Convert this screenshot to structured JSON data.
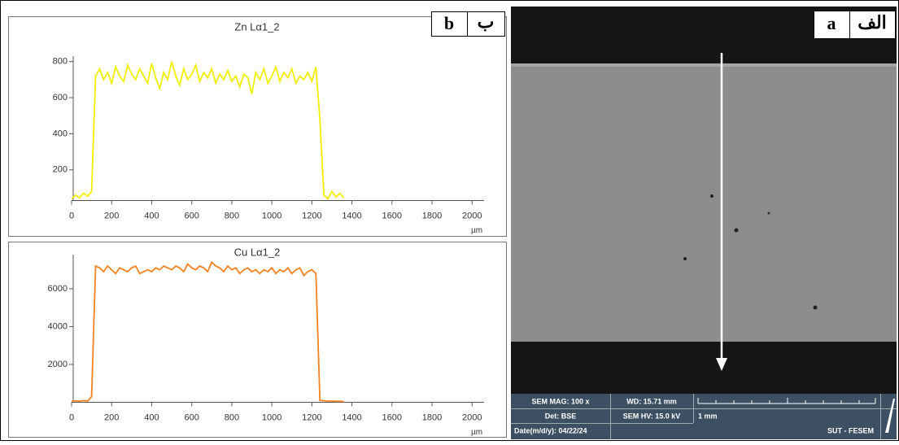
{
  "panel_labels": {
    "b_latin": "b",
    "b_persian": "ب",
    "a_latin": "a",
    "a_persian": "الف"
  },
  "chart_data": [
    {
      "type": "line",
      "title": "Zn Lα1_2",
      "x_unit": "µm",
      "x": [
        0,
        20,
        40,
        60,
        80,
        100,
        120,
        140,
        160,
        180,
        200,
        220,
        240,
        260,
        280,
        300,
        320,
        340,
        360,
        380,
        400,
        420,
        440,
        460,
        480,
        500,
        520,
        540,
        560,
        580,
        600,
        620,
        640,
        660,
        680,
        700,
        720,
        740,
        760,
        780,
        800,
        820,
        840,
        860,
        880,
        900,
        920,
        940,
        960,
        980,
        1000,
        1020,
        1040,
        1060,
        1080,
        1100,
        1120,
        1140,
        1160,
        1180,
        1200,
        1220,
        1240,
        1260,
        1280,
        1300,
        1320,
        1340,
        1360
      ],
      "series": [
        {
          "name": "Zn Lα1_2",
          "color": "#f2ee00",
          "values": [
            40,
            60,
            45,
            70,
            55,
            80,
            720,
            760,
            700,
            740,
            680,
            770,
            720,
            690,
            780,
            730,
            700,
            760,
            720,
            680,
            790,
            710,
            650,
            740,
            700,
            800,
            720,
            670,
            760,
            700,
            730,
            780,
            690,
            740,
            710,
            760,
            680,
            730,
            700,
            750,
            690,
            720,
            660,
            730,
            710,
            620,
            740,
            700,
            760,
            680,
            720,
            770,
            690,
            740,
            710,
            760,
            680,
            720,
            700,
            740,
            690,
            770,
            480,
            60,
            40,
            80,
            50,
            70,
            45
          ]
        }
      ],
      "xlim": [
        0,
        2060
      ],
      "xticks": [
        0,
        200,
        400,
        600,
        800,
        1000,
        1200,
        1400,
        1600,
        1800,
        2000
      ],
      "ylim": [
        30,
        830
      ],
      "yticks": [
        200,
        400,
        600,
        800
      ]
    },
    {
      "type": "line",
      "title": "Cu Lα1_2",
      "x_unit": "µm",
      "x": [
        0,
        20,
        40,
        60,
        80,
        100,
        120,
        140,
        160,
        180,
        200,
        220,
        240,
        260,
        280,
        300,
        320,
        340,
        360,
        380,
        400,
        420,
        440,
        460,
        480,
        500,
        520,
        540,
        560,
        580,
        600,
        620,
        640,
        660,
        680,
        700,
        720,
        740,
        760,
        780,
        800,
        820,
        840,
        860,
        880,
        900,
        920,
        940,
        960,
        980,
        1000,
        1020,
        1040,
        1060,
        1080,
        1100,
        1120,
        1140,
        1160,
        1180,
        1200,
        1220,
        1240,
        1260,
        1280,
        1300,
        1320,
        1340,
        1360
      ],
      "series": [
        {
          "name": "Cu Lα1_2",
          "color": "#f5821f",
          "values": [
            50,
            80,
            60,
            90,
            70,
            300,
            7200,
            7100,
            6900,
            7200,
            7000,
            6800,
            7100,
            7000,
            6900,
            7100,
            7200,
            6800,
            6900,
            7000,
            6900,
            7100,
            7000,
            7200,
            7100,
            7000,
            7200,
            7100,
            6900,
            7300,
            7100,
            7000,
            7200,
            7100,
            6900,
            7400,
            7200,
            7100,
            6900,
            7200,
            7000,
            7100,
            6800,
            7000,
            7100,
            6900,
            7000,
            6800,
            7000,
            6900,
            7100,
            6800,
            7000,
            6900,
            7100,
            6800,
            7000,
            7100,
            6700,
            6900,
            7000,
            6800,
            100,
            80,
            60,
            70,
            50,
            60,
            40
          ]
        }
      ],
      "xlim": [
        0,
        2060
      ],
      "xticks": [
        0,
        200,
        400,
        600,
        800,
        1000,
        1200,
        1400,
        1600,
        1800,
        2000
      ],
      "ylim": [
        0,
        7800
      ],
      "yticks": [
        2000,
        4000,
        6000
      ]
    }
  ],
  "sem": {
    "mag": "SEM MAG: 100 x",
    "wd": "WD: 15.71 mm",
    "det": "Det: BSE",
    "hv": "SEM HV: 15.0 kV",
    "scale": "1 mm",
    "date": "Date(m/d/y): 04/22/24",
    "lab": "SUT - FESEM"
  }
}
